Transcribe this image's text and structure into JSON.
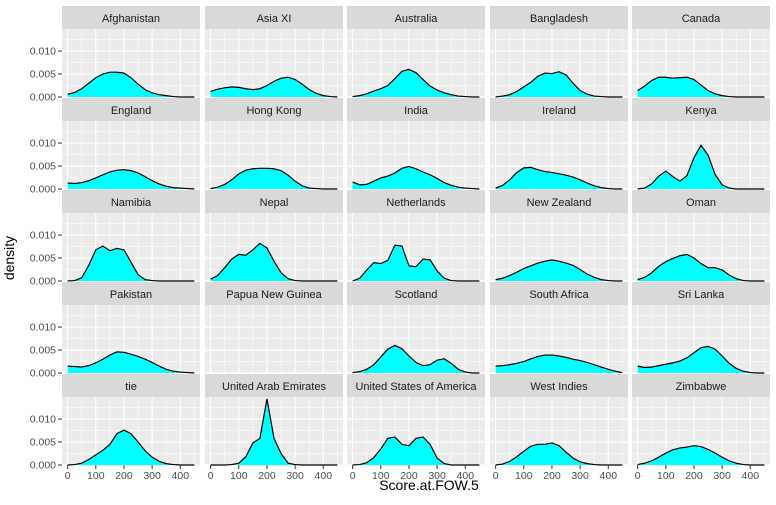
{
  "chart_data": {
    "type": "area",
    "chart_kind": "faceted density plot",
    "xlabel": "Score.at.FOW.5",
    "ylabel": "density",
    "xlim": [
      -20,
      470
    ],
    "ylim": [
      0,
      0.0148
    ],
    "x_ticks": [
      0,
      100,
      200,
      300,
      400
    ],
    "y_ticks": [
      0.0,
      0.005,
      0.01
    ],
    "y_tick_labels": [
      "0.000",
      "0.005",
      "0.010"
    ],
    "grid": true,
    "colors": {
      "fill": "#00FFFF",
      "line": "#000000",
      "panel_bg": "#EBEBEB",
      "strip_bg": "#D9D9D9",
      "grid_major": "#FFFFFF"
    },
    "x": [
      0,
      25,
      50,
      75,
      100,
      125,
      150,
      175,
      200,
      225,
      250,
      275,
      300,
      325,
      350,
      375,
      400,
      425,
      450
    ],
    "facets": [
      {
        "name": "Afghanistan",
        "values": [
          0.0006,
          0.001,
          0.0018,
          0.003,
          0.0042,
          0.005,
          0.0054,
          0.0054,
          0.0052,
          0.0042,
          0.0028,
          0.0016,
          0.0009,
          0.0005,
          0.0003,
          0.0001,
          0,
          0,
          0
        ]
      },
      {
        "name": "Asia XI",
        "values": [
          0.0012,
          0.0017,
          0.002,
          0.0022,
          0.0021,
          0.0018,
          0.0016,
          0.0018,
          0.0025,
          0.0034,
          0.0041,
          0.0043,
          0.0038,
          0.0028,
          0.0016,
          0.0008,
          0.0003,
          0.0001,
          0
        ]
      },
      {
        "name": "Australia",
        "values": [
          0.0001,
          0.0003,
          0.0007,
          0.0013,
          0.0018,
          0.0025,
          0.004,
          0.0056,
          0.006,
          0.0053,
          0.0038,
          0.0024,
          0.0015,
          0.0009,
          0.0005,
          0.0002,
          0.0001,
          0,
          0
        ]
      },
      {
        "name": "Bangladesh",
        "values": [
          0,
          0.0002,
          0.0005,
          0.0012,
          0.0022,
          0.0032,
          0.0045,
          0.0052,
          0.0051,
          0.0055,
          0.0048,
          0.003,
          0.0014,
          0.0006,
          0.0002,
          0.0001,
          0,
          0,
          0
        ]
      },
      {
        "name": "Canada",
        "values": [
          0.0014,
          0.0024,
          0.0036,
          0.0043,
          0.0043,
          0.0041,
          0.0042,
          0.0043,
          0.0038,
          0.0026,
          0.0014,
          0.0007,
          0.0003,
          0.0001,
          0,
          0,
          0,
          0,
          0
        ]
      },
      {
        "name": "England",
        "values": [
          0.0013,
          0.0012,
          0.0014,
          0.0018,
          0.0024,
          0.0031,
          0.0037,
          0.0041,
          0.0042,
          0.004,
          0.0035,
          0.0027,
          0.0018,
          0.0011,
          0.0006,
          0.0003,
          0.0002,
          0.0001,
          0
        ]
      },
      {
        "name": "Hong Kong",
        "values": [
          0.0001,
          0.0004,
          0.001,
          0.002,
          0.0033,
          0.0041,
          0.0044,
          0.0045,
          0.0045,
          0.0044,
          0.004,
          0.003,
          0.0017,
          0.0007,
          0.0002,
          0.0001,
          0,
          0,
          0
        ]
      },
      {
        "name": "India",
        "values": [
          0.0015,
          0.0009,
          0.001,
          0.0017,
          0.0024,
          0.0028,
          0.0035,
          0.0045,
          0.0049,
          0.0044,
          0.0037,
          0.0031,
          0.0023,
          0.0014,
          0.0008,
          0.0004,
          0.0002,
          0.0001,
          0
        ]
      },
      {
        "name": "Ireland",
        "values": [
          0.0002,
          0.0008,
          0.002,
          0.0036,
          0.0046,
          0.0047,
          0.0042,
          0.0038,
          0.0036,
          0.0033,
          0.003,
          0.0026,
          0.002,
          0.0013,
          0.0007,
          0.0003,
          0.0001,
          0,
          0
        ]
      },
      {
        "name": "Kenya",
        "values": [
          0,
          0.0002,
          0.0011,
          0.0028,
          0.0039,
          0.0027,
          0.0017,
          0.0029,
          0.0068,
          0.0095,
          0.0074,
          0.0032,
          0.0009,
          0.0002,
          0,
          0,
          0,
          0,
          0
        ]
      },
      {
        "name": "Namibia",
        "values": [
          0,
          0.0001,
          0.0007,
          0.0034,
          0.0068,
          0.0076,
          0.0066,
          0.0071,
          0.0068,
          0.0041,
          0.0014,
          0.0003,
          0.0001,
          0,
          0,
          0,
          0,
          0,
          0
        ]
      },
      {
        "name": "Nepal",
        "values": [
          0.0004,
          0.0012,
          0.0029,
          0.0048,
          0.0058,
          0.0056,
          0.0068,
          0.0082,
          0.0072,
          0.0043,
          0.0018,
          0.0005,
          0.0001,
          0,
          0,
          0,
          0,
          0,
          0
        ]
      },
      {
        "name": "Netherlands",
        "values": [
          0,
          0.0006,
          0.0024,
          0.004,
          0.0038,
          0.0045,
          0.0078,
          0.0076,
          0.0033,
          0.0031,
          0.0048,
          0.0046,
          0.0022,
          0.0006,
          0.0001,
          0,
          0,
          0,
          0
        ]
      },
      {
        "name": "New Zealand",
        "values": [
          0.0003,
          0.0006,
          0.0012,
          0.0019,
          0.0027,
          0.0033,
          0.0039,
          0.0043,
          0.0046,
          0.0043,
          0.0039,
          0.0034,
          0.0025,
          0.0015,
          0.0008,
          0.0003,
          0.0001,
          0,
          0
        ]
      },
      {
        "name": "Oman",
        "values": [
          0.0003,
          0.0008,
          0.0018,
          0.0032,
          0.0042,
          0.0049,
          0.0055,
          0.0058,
          0.005,
          0.0038,
          0.0029,
          0.0029,
          0.0024,
          0.0013,
          0.0005,
          0.0001,
          0,
          0,
          0
        ]
      },
      {
        "name": "Pakistan",
        "values": [
          0.0015,
          0.0014,
          0.0013,
          0.0016,
          0.0022,
          0.003,
          0.0039,
          0.0046,
          0.0045,
          0.0041,
          0.0036,
          0.003,
          0.0023,
          0.0015,
          0.0008,
          0.0004,
          0.0002,
          0.0001,
          0
        ]
      },
      {
        "name": "Papua New Guinea",
        "values": []
      },
      {
        "name": "Scotland",
        "values": [
          0.0001,
          0.0003,
          0.0008,
          0.0018,
          0.0035,
          0.0052,
          0.006,
          0.0053,
          0.0037,
          0.0023,
          0.0016,
          0.0018,
          0.0028,
          0.0031,
          0.0021,
          0.0008,
          0.0002,
          0,
          0
        ]
      },
      {
        "name": "South Africa",
        "values": [
          0.0015,
          0.0016,
          0.0018,
          0.0021,
          0.0025,
          0.0031,
          0.0036,
          0.0039,
          0.0039,
          0.0037,
          0.0034,
          0.003,
          0.0027,
          0.0023,
          0.0018,
          0.0013,
          0.0008,
          0.0004,
          0.0001
        ]
      },
      {
        "name": "Sri Lanka",
        "values": [
          0.0015,
          0.0012,
          0.0013,
          0.0016,
          0.0019,
          0.0022,
          0.0026,
          0.0033,
          0.0044,
          0.0055,
          0.0058,
          0.0052,
          0.0037,
          0.0021,
          0.001,
          0.0004,
          0.0001,
          0,
          0
        ]
      },
      {
        "name": "tie",
        "values": [
          0,
          0.0001,
          0.0004,
          0.0012,
          0.0022,
          0.0032,
          0.0045,
          0.0068,
          0.0076,
          0.0068,
          0.005,
          0.0031,
          0.0017,
          0.0008,
          0.0003,
          0.0001,
          0,
          0,
          0
        ]
      },
      {
        "name": "United Arab Emirates",
        "values": [
          0,
          0,
          0,
          0.0001,
          0.0004,
          0.0018,
          0.0048,
          0.0058,
          0.0144,
          0.0058,
          0.0025,
          0.0004,
          0.0001,
          0,
          0,
          0,
          0,
          0,
          0
        ]
      },
      {
        "name": "United States of America",
        "values": [
          0,
          0.0001,
          0.0005,
          0.0016,
          0.0035,
          0.0058,
          0.0061,
          0.0045,
          0.0042,
          0.0058,
          0.0061,
          0.0045,
          0.0015,
          0.0003,
          0,
          0,
          0,
          0,
          0
        ]
      },
      {
        "name": "West Indies",
        "values": [
          0,
          0.0002,
          0.0008,
          0.0018,
          0.003,
          0.0041,
          0.0045,
          0.0045,
          0.0048,
          0.0042,
          0.0028,
          0.0015,
          0.0007,
          0.0003,
          0.0001,
          0,
          0,
          0,
          0
        ]
      },
      {
        "name": "Zimbabwe",
        "values": [
          0.0001,
          0.0004,
          0.0009,
          0.0017,
          0.0026,
          0.0033,
          0.0037,
          0.0039,
          0.0042,
          0.004,
          0.0034,
          0.0026,
          0.0017,
          0.0009,
          0.0004,
          0.0001,
          0,
          0,
          0
        ]
      }
    ]
  }
}
